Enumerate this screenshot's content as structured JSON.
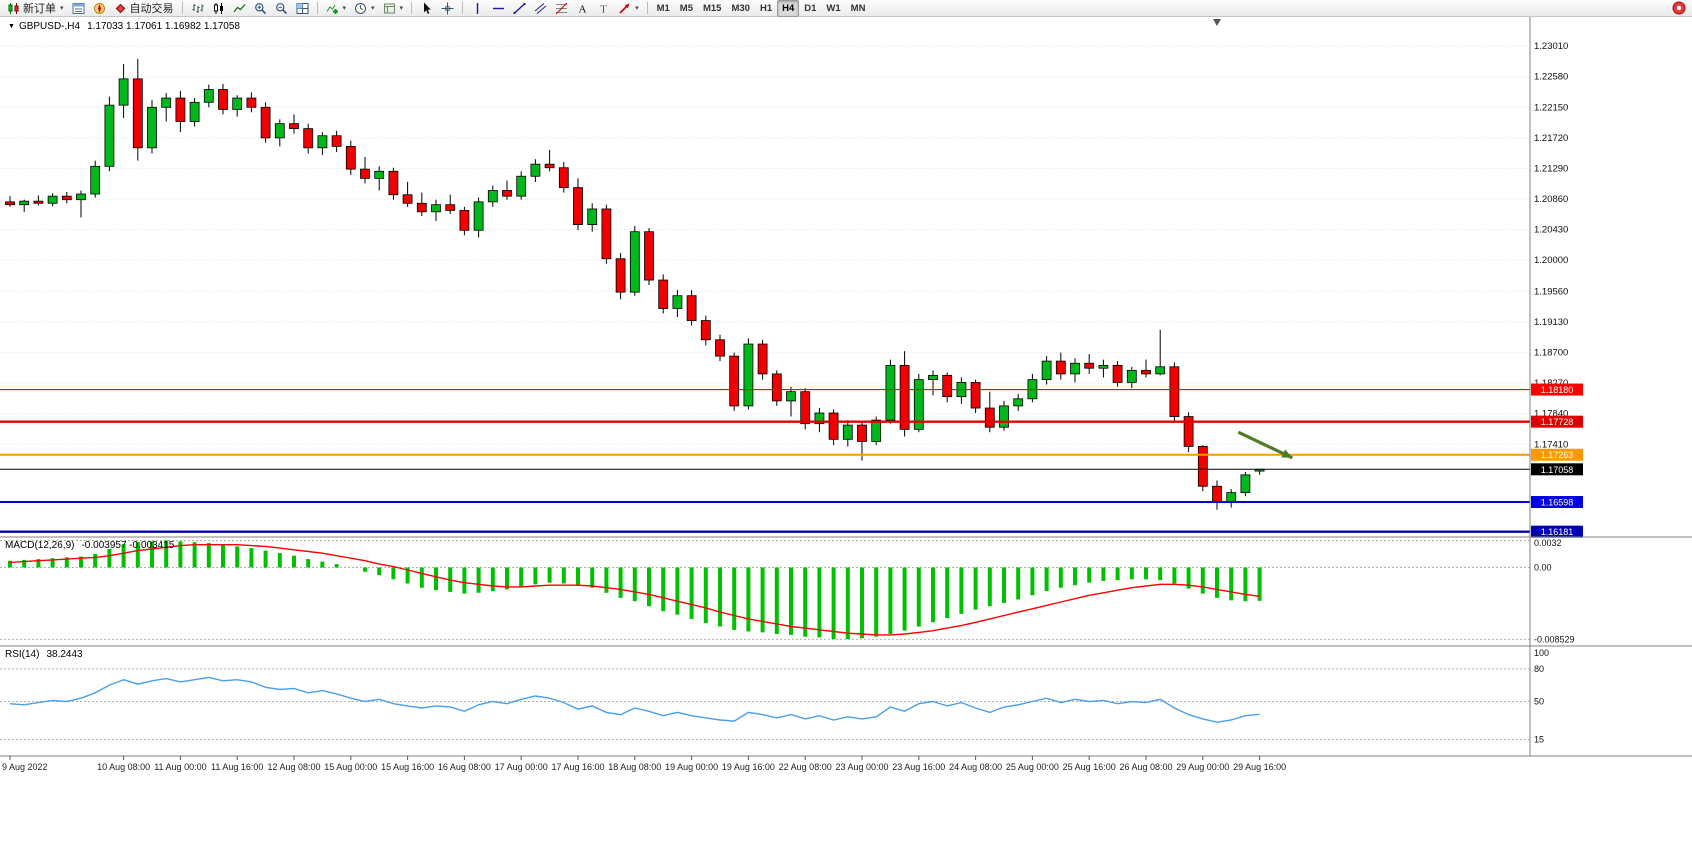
{
  "toolbar": {
    "groups": [
      {
        "items": [
          {
            "name": "new-order-button",
            "icon": "new-order-icon",
            "label": "新订单",
            "caret": true
          },
          {
            "name": "market-watch-button",
            "icon": "market-watch-icon"
          },
          {
            "name": "navigator-button",
            "icon": "navigator-icon"
          },
          {
            "name": "autotrade-button",
            "icon": "autotrade-icon",
            "label": "自动交易"
          }
        ]
      },
      {
        "items": [
          {
            "name": "bar-chart-button",
            "icon": "bars-icon"
          },
          {
            "name": "candlestick-chart-button",
            "icon": "candles-icon"
          },
          {
            "name": "line-chart-button",
            "icon": "line-icon"
          },
          {
            "name": "zoom-in-button",
            "icon": "zoom-in-icon"
          },
          {
            "name": "zoom-out-button",
            "icon": "zoom-out-icon"
          },
          {
            "name": "tile-windows-button",
            "icon": "tile-icon"
          }
        ]
      },
      {
        "items": [
          {
            "name": "indicators-button",
            "icon": "indicators-icon",
            "caret": true
          },
          {
            "name": "periods-button",
            "icon": "clock-icon",
            "caret": true
          },
          {
            "name": "templates-button",
            "icon": "template-icon",
            "caret": true
          }
        ]
      },
      {
        "items": [
          {
            "name": "cursor-button",
            "icon": "cursor-icon"
          },
          {
            "name": "crosshair-button",
            "icon": "crosshair-icon"
          }
        ]
      },
      {
        "items": [
          {
            "name": "vertical-line-button",
            "icon": "vline-icon"
          },
          {
            "name": "horizontal-line-button",
            "icon": "hline-icon"
          },
          {
            "name": "trendline-button",
            "icon": "trendline-icon"
          },
          {
            "name": "equidistant-channel-button",
            "icon": "channel-icon"
          },
          {
            "name": "fibonacci-button",
            "icon": "fibo-icon"
          },
          {
            "name": "text-button",
            "icon": "text-icon"
          },
          {
            "name": "text-label-button",
            "icon": "label-icon"
          },
          {
            "name": "arrows-button",
            "icon": "arrow-icon",
            "caret": true
          }
        ]
      },
      {
        "items": [
          {
            "name": "tf-m1-button",
            "label": "M1",
            "tf": true
          },
          {
            "name": "tf-m5-button",
            "label": "M5",
            "tf": true
          },
          {
            "name": "tf-m15-button",
            "label": "M15",
            "tf": true
          },
          {
            "name": "tf-m30-button",
            "label": "M30",
            "tf": true
          },
          {
            "name": "tf-h1-button",
            "label": "H1",
            "tf": true
          },
          {
            "name": "tf-h4-button",
            "label": "H4",
            "tf": true,
            "active": true
          },
          {
            "name": "tf-d1-button",
            "label": "D1",
            "tf": true
          },
          {
            "name": "tf-w1-button",
            "label": "W1",
            "tf": true
          },
          {
            "name": "tf-mn-button",
            "label": "MN",
            "tf": true
          }
        ]
      }
    ],
    "notification": {
      "name": "notification-icon"
    }
  },
  "chart": {
    "title": {
      "symbol_period": "GBPUSD-,H4",
      "ohlc": "1.17033 1.17061 1.16982 1.17058"
    },
    "macd_title": {
      "label": "MACD(12,26,9)",
      "values": "-0.003957 -0.003415"
    },
    "rsi_title": {
      "label": "RSI(14)",
      "value": "38.2443"
    }
  },
  "chart_data": {
    "type": "candlestick+indicators",
    "symbol": "GBPUSD-",
    "period": "H4",
    "ohlc_current": {
      "open": 1.17033,
      "high": 1.17061,
      "low": 1.16982,
      "close": 1.17058
    },
    "price_axis": {
      "min": 1.1612,
      "max": 1.2342,
      "ticks": [
        "1.23010",
        "1.22580",
        "1.22150",
        "1.21720",
        "1.21290",
        "1.20860",
        "1.20430",
        "1.20000",
        "1.19560",
        "1.19130",
        "1.18700",
        "1.18270",
        "1.17840",
        "1.17410"
      ]
    },
    "candles": [
      [
        1.2082,
        1.209,
        1.2075,
        1.2078
      ],
      [
        1.2078,
        1.2085,
        1.2068,
        1.2083
      ],
      [
        1.2083,
        1.2091,
        1.2077,
        1.208
      ],
      [
        1.208,
        1.2094,
        1.2076,
        1.209
      ],
      [
        1.209,
        1.2096,
        1.208,
        1.2085
      ],
      [
        1.2085,
        1.2098,
        1.206,
        1.2093
      ],
      [
        1.2093,
        1.214,
        1.2088,
        1.2132
      ],
      [
        1.2132,
        1.223,
        1.2125,
        1.2218
      ],
      [
        1.2218,
        1.2276,
        1.22,
        1.2255
      ],
      [
        1.2255,
        1.2283,
        1.214,
        1.2158
      ],
      [
        1.2158,
        1.2225,
        1.215,
        1.2215
      ],
      [
        1.2215,
        1.2235,
        1.2195,
        1.2228
      ],
      [
        1.2228,
        1.2238,
        1.218,
        1.2195
      ],
      [
        1.2195,
        1.2228,
        1.2188,
        1.2222
      ],
      [
        1.2222,
        1.2247,
        1.2215,
        1.224
      ],
      [
        1.224,
        1.2248,
        1.2205,
        1.2212
      ],
      [
        1.2212,
        1.2232,
        1.2202,
        1.2228
      ],
      [
        1.2228,
        1.2236,
        1.2208,
        1.2215
      ],
      [
        1.2215,
        1.2222,
        1.2165,
        1.2172
      ],
      [
        1.2172,
        1.2198,
        1.216,
        1.2192
      ],
      [
        1.2192,
        1.2205,
        1.2178,
        1.2185
      ],
      [
        1.2185,
        1.2192,
        1.215,
        1.2158
      ],
      [
        1.2158,
        1.218,
        1.2148,
        1.2175
      ],
      [
        1.2175,
        1.2182,
        1.2152,
        1.216
      ],
      [
        1.216,
        1.2168,
        1.212,
        1.2128
      ],
      [
        1.2128,
        1.2145,
        1.2108,
        1.2115
      ],
      [
        1.2115,
        1.2132,
        1.2098,
        1.2125
      ],
      [
        1.2125,
        1.213,
        1.2085,
        1.2092
      ],
      [
        1.2092,
        1.211,
        1.2075,
        1.208
      ],
      [
        1.208,
        1.2095,
        1.2062,
        1.2068
      ],
      [
        1.2068,
        1.2085,
        1.2055,
        1.2078
      ],
      [
        1.2078,
        1.2092,
        1.2065,
        1.207
      ],
      [
        1.207,
        1.2075,
        1.2035,
        1.2042
      ],
      [
        1.2042,
        1.2088,
        1.2032,
        1.2082
      ],
      [
        1.2082,
        1.2105,
        1.2075,
        1.2098
      ],
      [
        1.2098,
        1.2112,
        1.2085,
        1.209
      ],
      [
        1.209,
        1.2125,
        1.2085,
        1.2118
      ],
      [
        1.2118,
        1.2142,
        1.211,
        1.2135
      ],
      [
        1.2135,
        1.2155,
        1.2125,
        1.213
      ],
      [
        1.213,
        1.2138,
        1.2095,
        1.2102
      ],
      [
        1.2102,
        1.2115,
        1.2042,
        1.205
      ],
      [
        1.205,
        1.208,
        1.204,
        1.2072
      ],
      [
        1.2072,
        1.2078,
        1.1995,
        1.2002
      ],
      [
        1.2002,
        1.201,
        1.1945,
        1.1955
      ],
      [
        1.1955,
        1.2048,
        1.195,
        1.204
      ],
      [
        1.204,
        1.2045,
        1.1965,
        1.1972
      ],
      [
        1.1972,
        1.198,
        1.1925,
        1.1932
      ],
      [
        1.1932,
        1.1958,
        1.192,
        1.195
      ],
      [
        1.195,
        1.1958,
        1.1908,
        1.1915
      ],
      [
        1.1915,
        1.1922,
        1.188,
        1.1888
      ],
      [
        1.1888,
        1.1895,
        1.1858,
        1.1865
      ],
      [
        1.1865,
        1.187,
        1.1788,
        1.1795
      ],
      [
        1.1795,
        1.189,
        1.179,
        1.1882
      ],
      [
        1.1882,
        1.1888,
        1.1832,
        1.184
      ],
      [
        1.184,
        1.1845,
        1.1795,
        1.1802
      ],
      [
        1.1802,
        1.1822,
        1.178,
        1.1815
      ],
      [
        1.1815,
        1.182,
        1.1762,
        1.177
      ],
      [
        1.177,
        1.1792,
        1.1758,
        1.1785
      ],
      [
        1.1785,
        1.179,
        1.174,
        1.1748
      ],
      [
        1.1748,
        1.1775,
        1.1738,
        1.1768
      ],
      [
        1.1768,
        1.1772,
        1.1718,
        1.1745
      ],
      [
        1.1745,
        1.178,
        1.174,
        1.1775
      ],
      [
        1.1775,
        1.186,
        1.177,
        1.1852
      ],
      [
        1.1852,
        1.1872,
        1.1752,
        1.1762
      ],
      [
        1.1762,
        1.184,
        1.1758,
        1.1832
      ],
      [
        1.1832,
        1.1845,
        1.181,
        1.1838
      ],
      [
        1.1838,
        1.1842,
        1.18,
        1.1808
      ],
      [
        1.1808,
        1.1835,
        1.1798,
        1.1828
      ],
      [
        1.1828,
        1.1832,
        1.1785,
        1.1792
      ],
      [
        1.1792,
        1.1815,
        1.1758,
        1.1765
      ],
      [
        1.1765,
        1.1802,
        1.176,
        1.1795
      ],
      [
        1.1795,
        1.1812,
        1.1788,
        1.1805
      ],
      [
        1.1805,
        1.184,
        1.18,
        1.1832
      ],
      [
        1.1832,
        1.1865,
        1.1825,
        1.1858
      ],
      [
        1.1858,
        1.187,
        1.1832,
        1.184
      ],
      [
        1.184,
        1.1862,
        1.1828,
        1.1855
      ],
      [
        1.1855,
        1.1868,
        1.184,
        1.1848
      ],
      [
        1.1848,
        1.186,
        1.1835,
        1.1852
      ],
      [
        1.1852,
        1.1858,
        1.1822,
        1.1828
      ],
      [
        1.1828,
        1.185,
        1.182,
        1.1845
      ],
      [
        1.1845,
        1.186,
        1.1835,
        1.184
      ],
      [
        1.184,
        1.1902,
        1.1838,
        1.185
      ],
      [
        1.185,
        1.1856,
        1.1772,
        1.178
      ],
      [
        1.178,
        1.1786,
        1.173,
        1.1738
      ],
      [
        1.1738,
        1.174,
        1.1675,
        1.1682
      ],
      [
        1.1682,
        1.169,
        1.1649,
        1.166
      ],
      [
        1.166,
        1.1678,
        1.1652,
        1.1673
      ],
      [
        1.1673,
        1.1702,
        1.1668,
        1.1698
      ],
      [
        1.17033,
        1.17061,
        1.16982,
        1.17058
      ]
    ],
    "levels": [
      {
        "price": 1.1818,
        "label": "1.18180",
        "color": "#ff0000",
        "width": 1.2
      },
      {
        "price": 1.17728,
        "label": "1.17728",
        "color": "#e00000",
        "width": 2.4
      },
      {
        "price": 1.17263,
        "label": "1.17263",
        "color": "#ff9900",
        "width": 2
      },
      {
        "price": 1.17058,
        "label": "1.17058",
        "color": "#000000",
        "width": 1
      },
      {
        "price": 1.16598,
        "label": "1.16598",
        "color": "#0000e6",
        "width": 2
      },
      {
        "price": 1.16181,
        "label": "1.16181",
        "color": "#0000b4",
        "width": 2.4
      }
    ],
    "current_price": 1.17058,
    "annotations": {
      "arrow": {
        "from": {
          "bar": 86.5,
          "price": 1.1758
        },
        "to": {
          "bar": 90.3,
          "price": 1.1722
        }
      },
      "shift_marker_bar": 85
    },
    "time_axis": [
      {
        "idx": 0,
        "label": "9 Aug 2022"
      },
      {
        "idx": 8,
        "label": "10 Aug 08:00"
      },
      {
        "idx": 12,
        "label": "11 Aug 00:00"
      },
      {
        "idx": 16,
        "label": "11 Aug 16:00"
      },
      {
        "idx": 20,
        "label": "12 Aug 08:00"
      },
      {
        "idx": 24,
        "label": "15 Aug 00:00"
      },
      {
        "idx": 28,
        "label": "15 Aug 16:00"
      },
      {
        "idx": 32,
        "label": "16 Aug 08:00"
      },
      {
        "idx": 36,
        "label": "17 Aug 00:00"
      },
      {
        "idx": 40,
        "label": "17 Aug 16:00"
      },
      {
        "idx": 44,
        "label": "18 Aug 08:00"
      },
      {
        "idx": 48,
        "label": "19 Aug 00:00"
      },
      {
        "idx": 52,
        "label": "19 Aug 16:00"
      },
      {
        "idx": 56,
        "label": "22 Aug 08:00"
      },
      {
        "idx": 60,
        "label": "23 Aug 00:00"
      },
      {
        "idx": 64,
        "label": "23 Aug 16:00"
      },
      {
        "idx": 68,
        "label": "24 Aug 08:00"
      },
      {
        "idx": 72,
        "label": "25 Aug 00:00"
      },
      {
        "idx": 76,
        "label": "25 Aug 16:00"
      },
      {
        "idx": 80,
        "label": "26 Aug 08:00"
      },
      {
        "idx": 84,
        "label": "29 Aug 00:00"
      },
      {
        "idx": 88,
        "label": "29 Aug 16:00"
      }
    ],
    "macd": {
      "label": "MACD(12,26,9)",
      "value_hist": -0.003957,
      "value_signal": -0.003415,
      "range": [
        -0.0092,
        0.0035
      ],
      "axis": [
        {
          "label": "0.0032",
          "value": 0.0032
        },
        {
          "label": "0.00",
          "value": 0
        },
        {
          "label": "-0.008529",
          "value": -0.008529
        }
      ],
      "hist": [
        0.0008,
        0.0009,
        0.001,
        0.0011,
        0.0012,
        0.0013,
        0.0016,
        0.0022,
        0.0028,
        0.003,
        0.0031,
        0.0032,
        0.0031,
        0.003,
        0.0029,
        0.0027,
        0.0025,
        0.0023,
        0.002,
        0.0017,
        0.0014,
        0.001,
        0.0007,
        0.0004,
        0.0,
        -0.0005,
        -0.0009,
        -0.0014,
        -0.0019,
        -0.0024,
        -0.0027,
        -0.0029,
        -0.0031,
        -0.003,
        -0.0028,
        -0.0026,
        -0.0023,
        -0.002,
        -0.0018,
        -0.0019,
        -0.0022,
        -0.0024,
        -0.003,
        -0.0036,
        -0.004,
        -0.0046,
        -0.0052,
        -0.0056,
        -0.0061,
        -0.0066,
        -0.007,
        -0.0074,
        -0.0076,
        -0.0077,
        -0.0079,
        -0.008,
        -0.0082,
        -0.0083,
        -0.0085,
        -0.0085,
        -0.0084,
        -0.0082,
        -0.0079,
        -0.0075,
        -0.007,
        -0.0065,
        -0.006,
        -0.0055,
        -0.005,
        -0.0046,
        -0.0042,
        -0.0038,
        -0.0033,
        -0.0028,
        -0.0024,
        -0.0021,
        -0.0018,
        -0.0016,
        -0.0015,
        -0.0014,
        -0.0014,
        -0.0015,
        -0.0019,
        -0.0025,
        -0.0031,
        -0.0036,
        -0.0039,
        -0.004,
        -0.003957
      ],
      "signal": [
        0.0006,
        0.0007,
        0.0008,
        0.0009,
        0.001,
        0.0011,
        0.0012,
        0.0014,
        0.0017,
        0.002,
        0.0022,
        0.0024,
        0.0026,
        0.0027,
        0.0027,
        0.0027,
        0.0027,
        0.0026,
        0.0025,
        0.0023,
        0.0021,
        0.0019,
        0.0017,
        0.0014,
        0.0011,
        0.0008,
        0.0004,
        0.0001,
        -0.0003,
        -0.0007,
        -0.0011,
        -0.0015,
        -0.0018,
        -0.002,
        -0.0022,
        -0.0023,
        -0.0023,
        -0.0022,
        -0.0021,
        -0.0021,
        -0.0021,
        -0.0022,
        -0.0024,
        -0.0026,
        -0.0029,
        -0.0032,
        -0.0036,
        -0.004,
        -0.0044,
        -0.0048,
        -0.0053,
        -0.0057,
        -0.0061,
        -0.0064,
        -0.0067,
        -0.007,
        -0.0072,
        -0.0074,
        -0.0076,
        -0.0078,
        -0.0079,
        -0.008,
        -0.008,
        -0.0079,
        -0.0077,
        -0.0075,
        -0.0072,
        -0.0069,
        -0.0065,
        -0.0061,
        -0.0057,
        -0.0053,
        -0.0049,
        -0.0045,
        -0.0041,
        -0.0037,
        -0.0033,
        -0.003,
        -0.0027,
        -0.0024,
        -0.0022,
        -0.002,
        -0.002,
        -0.0021,
        -0.0023,
        -0.0026,
        -0.0029,
        -0.0032,
        -0.003415
      ]
    },
    "rsi": {
      "label": "RSI(14)",
      "value": 38.2443,
      "range": [
        0,
        100
      ],
      "axis": [
        {
          "label": "100",
          "value": 100
        },
        {
          "label": "80",
          "value": 80
        },
        {
          "label": "50",
          "value": 50
        },
        {
          "label": "15",
          "value": 15
        }
      ],
      "values": [
        48,
        47,
        49,
        51,
        50,
        53,
        58,
        65,
        70,
        66,
        69,
        71,
        68,
        70,
        72,
        69,
        70,
        68,
        63,
        61,
        62,
        58,
        60,
        57,
        53,
        50,
        52,
        48,
        46,
        44,
        46,
        45,
        41,
        47,
        50,
        48,
        52,
        55,
        53,
        49,
        43,
        46,
        40,
        38,
        44,
        41,
        37,
        40,
        37,
        35,
        33,
        32,
        40,
        38,
        35,
        38,
        34,
        37,
        33,
        36,
        34,
        36,
        45,
        41,
        48,
        50,
        46,
        49,
        44,
        40,
        45,
        47,
        50,
        53,
        49,
        52,
        50,
        51,
        48,
        50,
        49,
        52,
        44,
        38,
        34,
        31,
        33,
        37,
        38.2443
      ]
    },
    "colors": {
      "up": "#00b81c",
      "down": "#f20000",
      "outline": "#000000",
      "macd_hist": "#00c000",
      "macd_signal": "#ff0000",
      "rsi_line": "#4aa0e8",
      "arrow": "#4e7d1f",
      "grid": "#e3e3e3",
      "border": "#808080"
    }
  }
}
